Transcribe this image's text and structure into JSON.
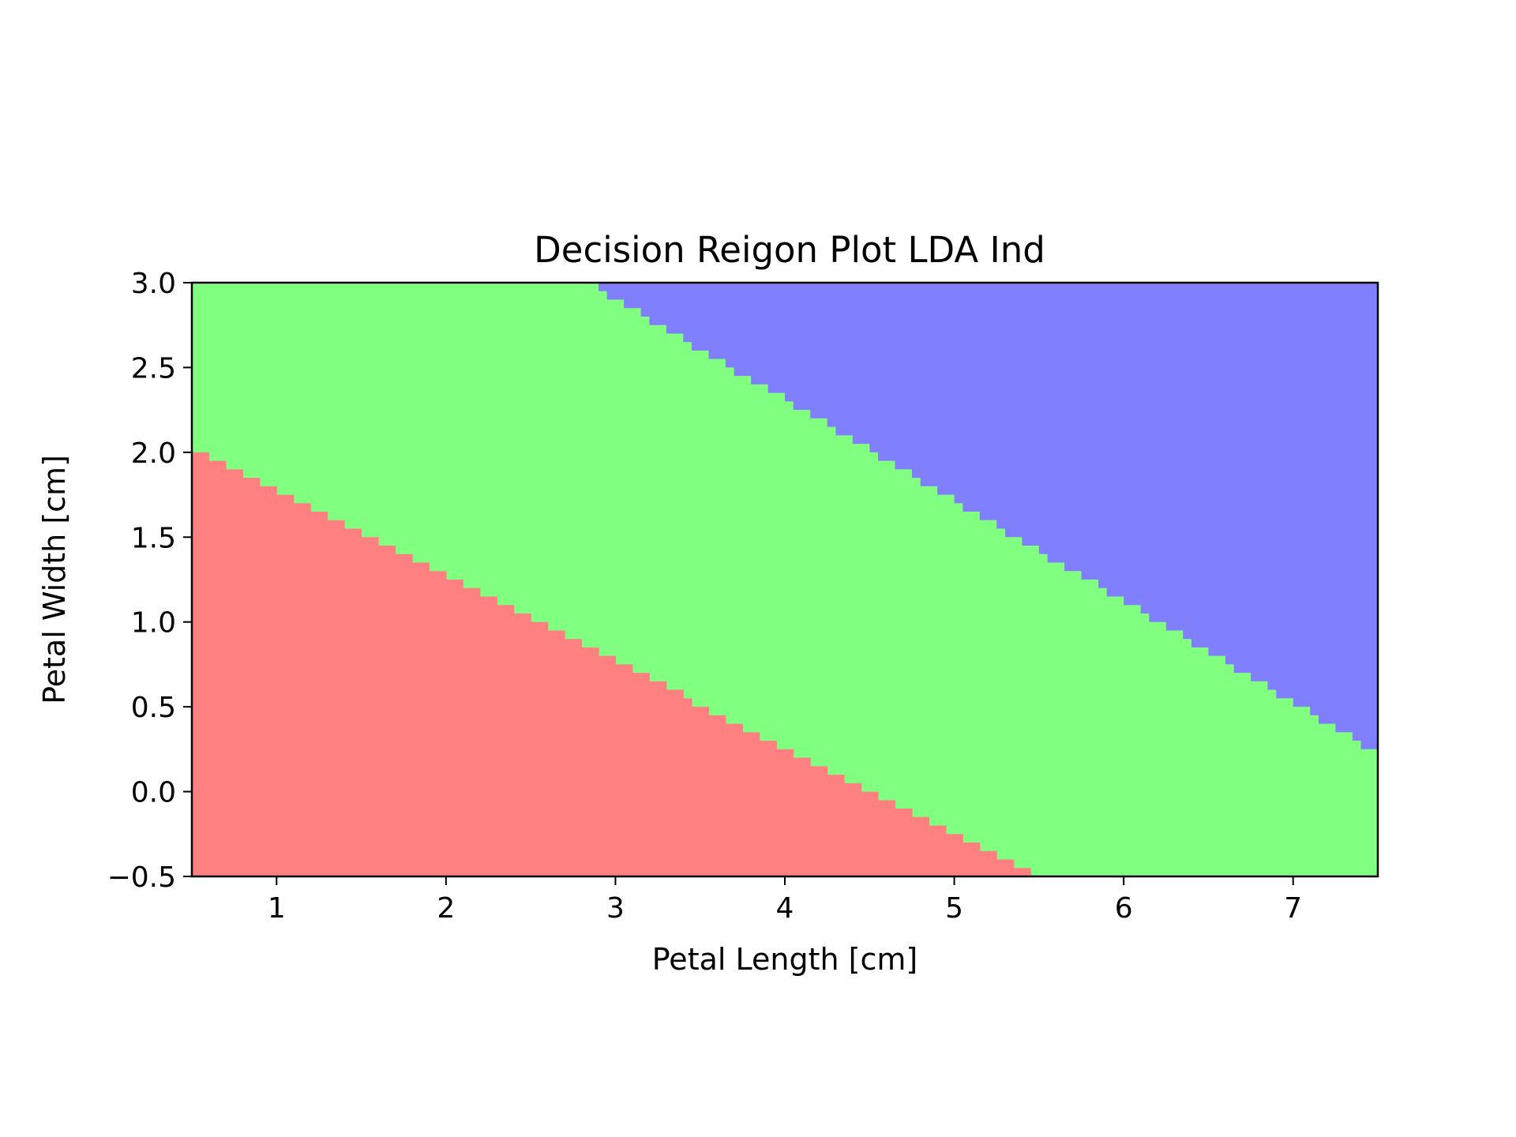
{
  "chart_data": {
    "type": "heatmap",
    "title": "Decision Reigon Plot LDA Ind",
    "xlabel": "Petal Length [cm]",
    "ylabel": "Petal Width [cm]",
    "xlim": [
      0.5,
      7.5
    ],
    "ylim": [
      -0.5,
      3.0
    ],
    "xticks": [
      1,
      2,
      3,
      4,
      5,
      6,
      7
    ],
    "xtick_labels": [
      "1",
      "2",
      "3",
      "4",
      "5",
      "6",
      "7"
    ],
    "yticks": [
      -0.5,
      0.0,
      0.5,
      1.0,
      1.5,
      2.0,
      2.5,
      3.0
    ],
    "ytick_labels": [
      "−0.5",
      "0.0",
      "0.5",
      "1.0",
      "1.5",
      "2.0",
      "2.5",
      "3.0"
    ],
    "grid": false,
    "legend": "none",
    "regions": [
      {
        "color": "#ff8080"
      },
      {
        "color": "#80ff80"
      },
      {
        "color": "#8080ff"
      }
    ],
    "boundaries": [
      {
        "between": [
          0,
          1
        ],
        "points": [
          [
            0.5,
            2.03
          ],
          [
            5.5,
            -0.5
          ]
        ]
      },
      {
        "between": [
          1,
          2
        ],
        "points": [
          [
            2.84,
            3.0
          ],
          [
            7.5,
            0.23
          ]
        ]
      }
    ],
    "grid_step": {
      "x": 0.05,
      "y": 0.05
    }
  }
}
